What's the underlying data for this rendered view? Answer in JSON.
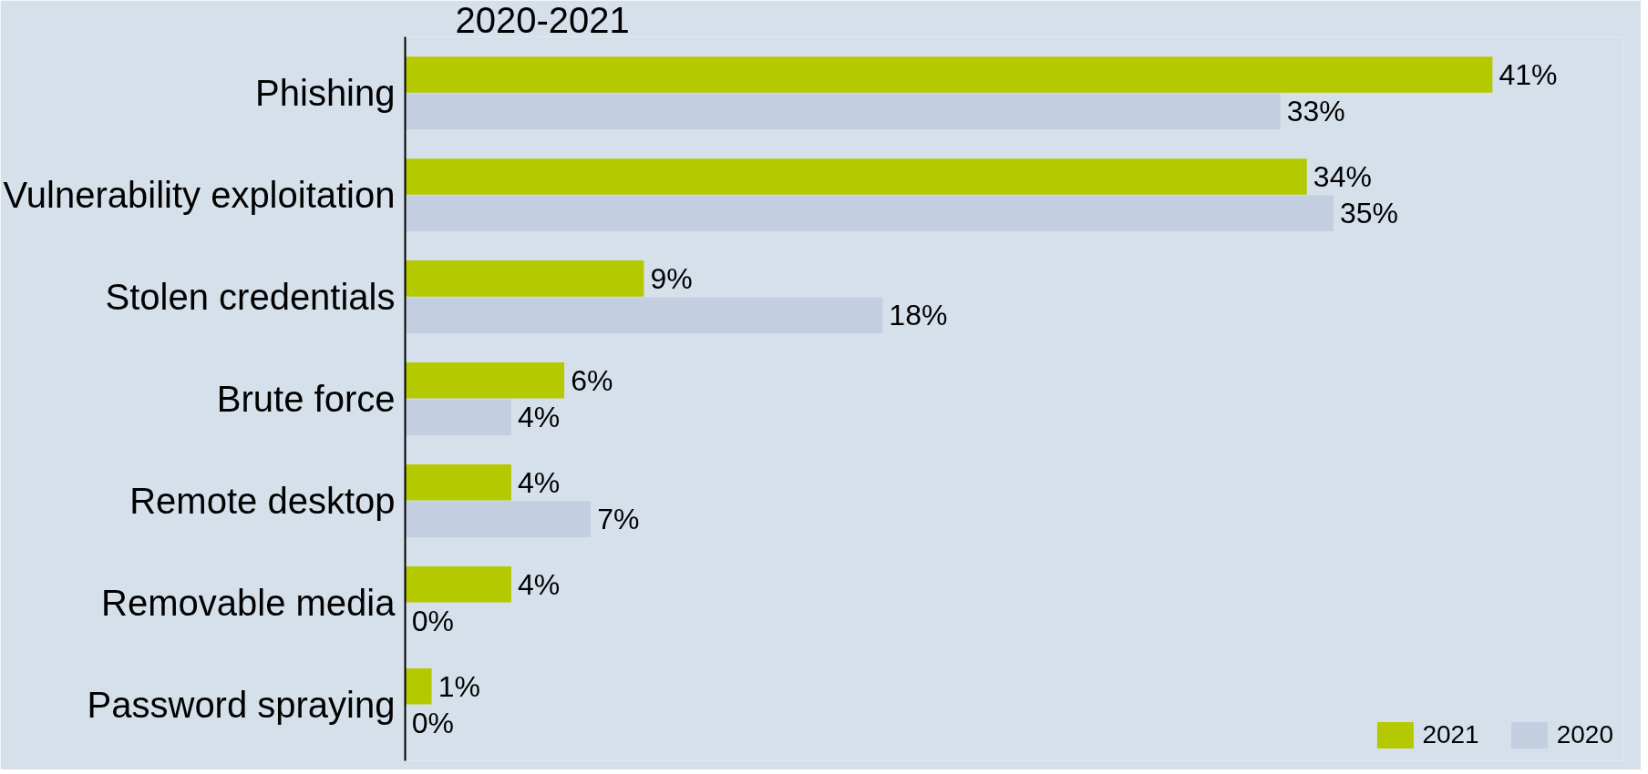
{
  "chart_data": {
    "type": "bar",
    "orientation": "horizontal",
    "title": "2020-2021",
    "categories": [
      "Phishing",
      "Vulnerability exploitation",
      "Stolen credentials",
      "Brute force",
      "Remote desktop",
      "Removable media",
      "Password spraying"
    ],
    "series": [
      {
        "name": "2021",
        "color": "#b5c900",
        "values": [
          41,
          34,
          9,
          6,
          4,
          4,
          1
        ],
        "value_labels": [
          "41%",
          "34%",
          "9%",
          "6%",
          "4%",
          "4%",
          "1%"
        ]
      },
      {
        "name": "2020",
        "color": "#c3cfe0",
        "values": [
          33,
          35,
          18,
          4,
          7,
          0,
          0
        ],
        "value_labels": [
          "33%",
          "35%",
          "18%",
          "4%",
          "7%",
          "0%",
          "0%"
        ]
      }
    ],
    "legend": "bottom right",
    "grid": false
  }
}
